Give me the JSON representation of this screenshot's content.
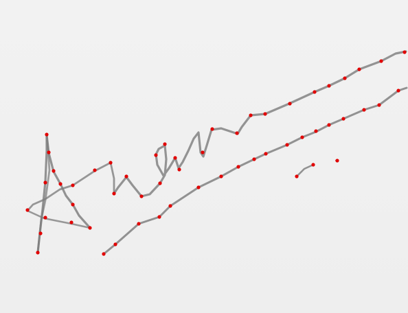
{
  "signature_sample": {
    "description_label": "",
    "ink_color": "#7c7c7c",
    "point_color": "#e10000",
    "background_color": "#efefef"
  }
}
